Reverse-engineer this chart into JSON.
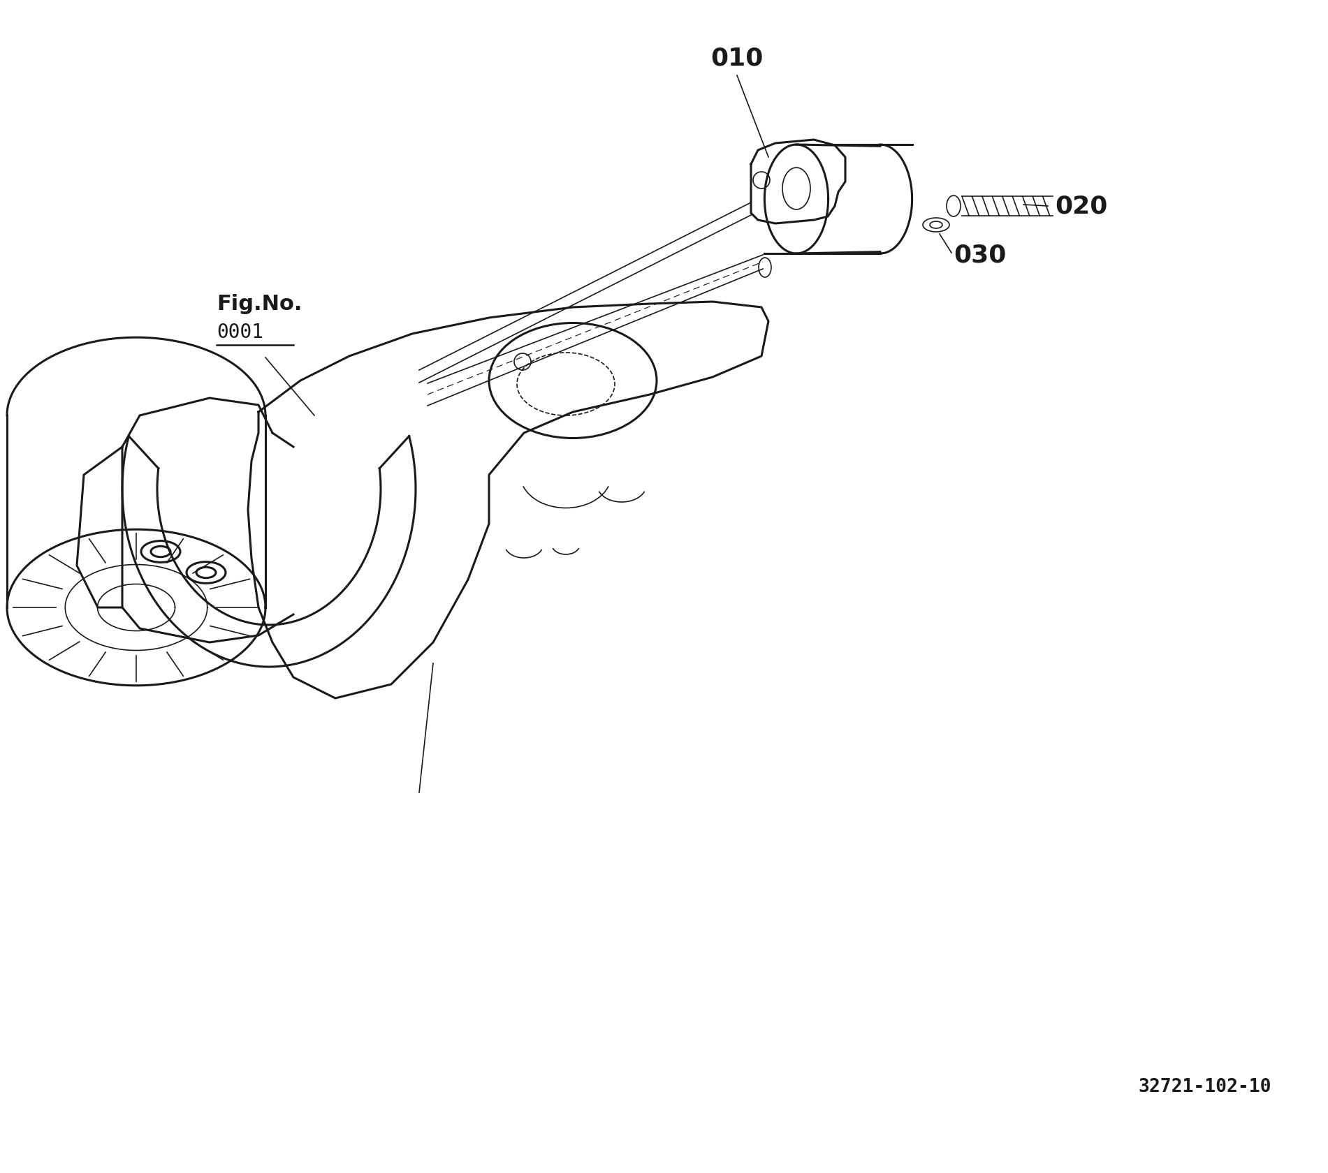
{
  "background_color": "#ffffff",
  "fig_no_label": "Fig.No.",
  "fig_no_value": "0001",
  "part_labels": [
    "010",
    "020",
    "030"
  ],
  "diagram_ref": "32721-102-10",
  "lw_main": 2.2,
  "lw_thin": 1.2,
  "col": "#1a1a1a"
}
